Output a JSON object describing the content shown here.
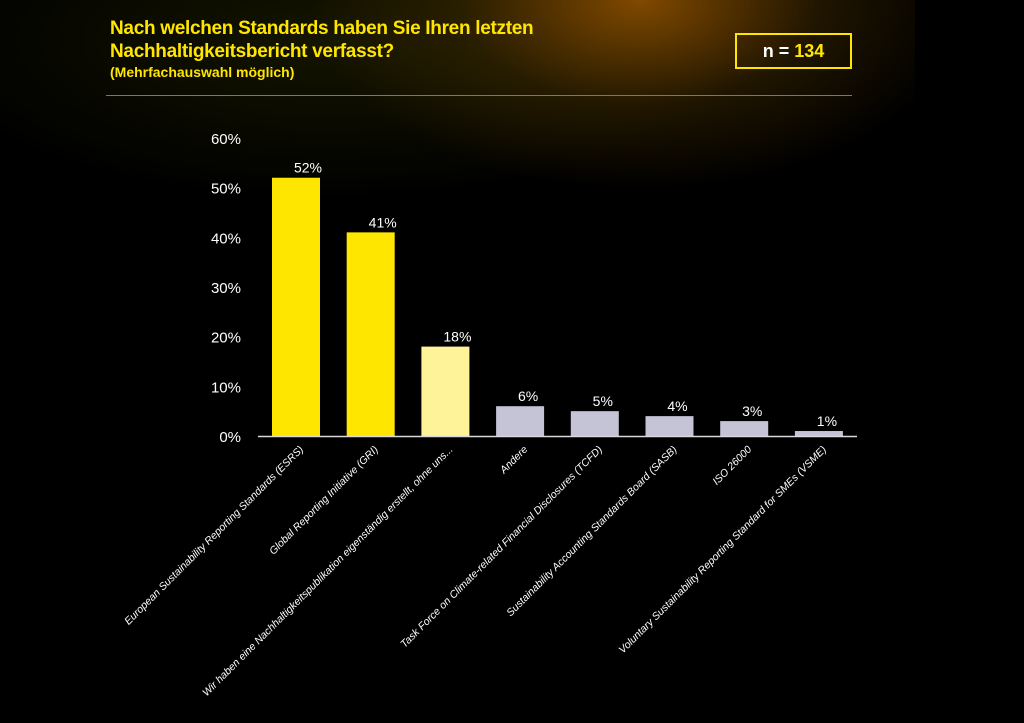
{
  "header": {
    "title_line1": "Nach welchen Standards haben Sie Ihren letzten",
    "title_line2": "Nachhaltigkeitsbericht verfasst?",
    "subtitle": "(Mehrfachauswahl möglich)",
    "n_label": "n =",
    "n_value": "134"
  },
  "chart_data": {
    "type": "bar",
    "title": "Nach welchen Standards haben Sie Ihren letzten Nachhaltigkeitsbericht verfasst?",
    "xlabel": "",
    "ylabel": "",
    "ylim": [
      0,
      60
    ],
    "yticks": [
      0,
      10,
      20,
      30,
      40,
      50,
      60
    ],
    "ytick_labels": [
      "0%",
      "10%",
      "20%",
      "30%",
      "40%",
      "50%",
      "60%"
    ],
    "grid": false,
    "categories": [
      "European Sustainability Reporting Standards (ESRS)",
      "Global Reporting Initiative (GRI)",
      "Wir haben eine Nachhaltigkeitspublikation eigenständig erstellt, ohne uns...",
      "Andere",
      "Task Force on Climate-related Financial Disclosures (TCFD)",
      "Sustainability Accounting Standards Board (SASB)",
      "ISO 26000",
      "Voluntary Sustainability Reporting Standard for SMEs (VSME)"
    ],
    "values": [
      52,
      41,
      18,
      6,
      5,
      4,
      3,
      1
    ],
    "data_labels": [
      "52%",
      "41%",
      "18%",
      "6%",
      "5%",
      "4%",
      "3%",
      "1%"
    ],
    "colors": [
      "#ffe600",
      "#ffe600",
      "#fff39a",
      "#c4c4d6",
      "#c4c4d6",
      "#c4c4d6",
      "#c4c4d6",
      "#c4c4d6"
    ]
  }
}
